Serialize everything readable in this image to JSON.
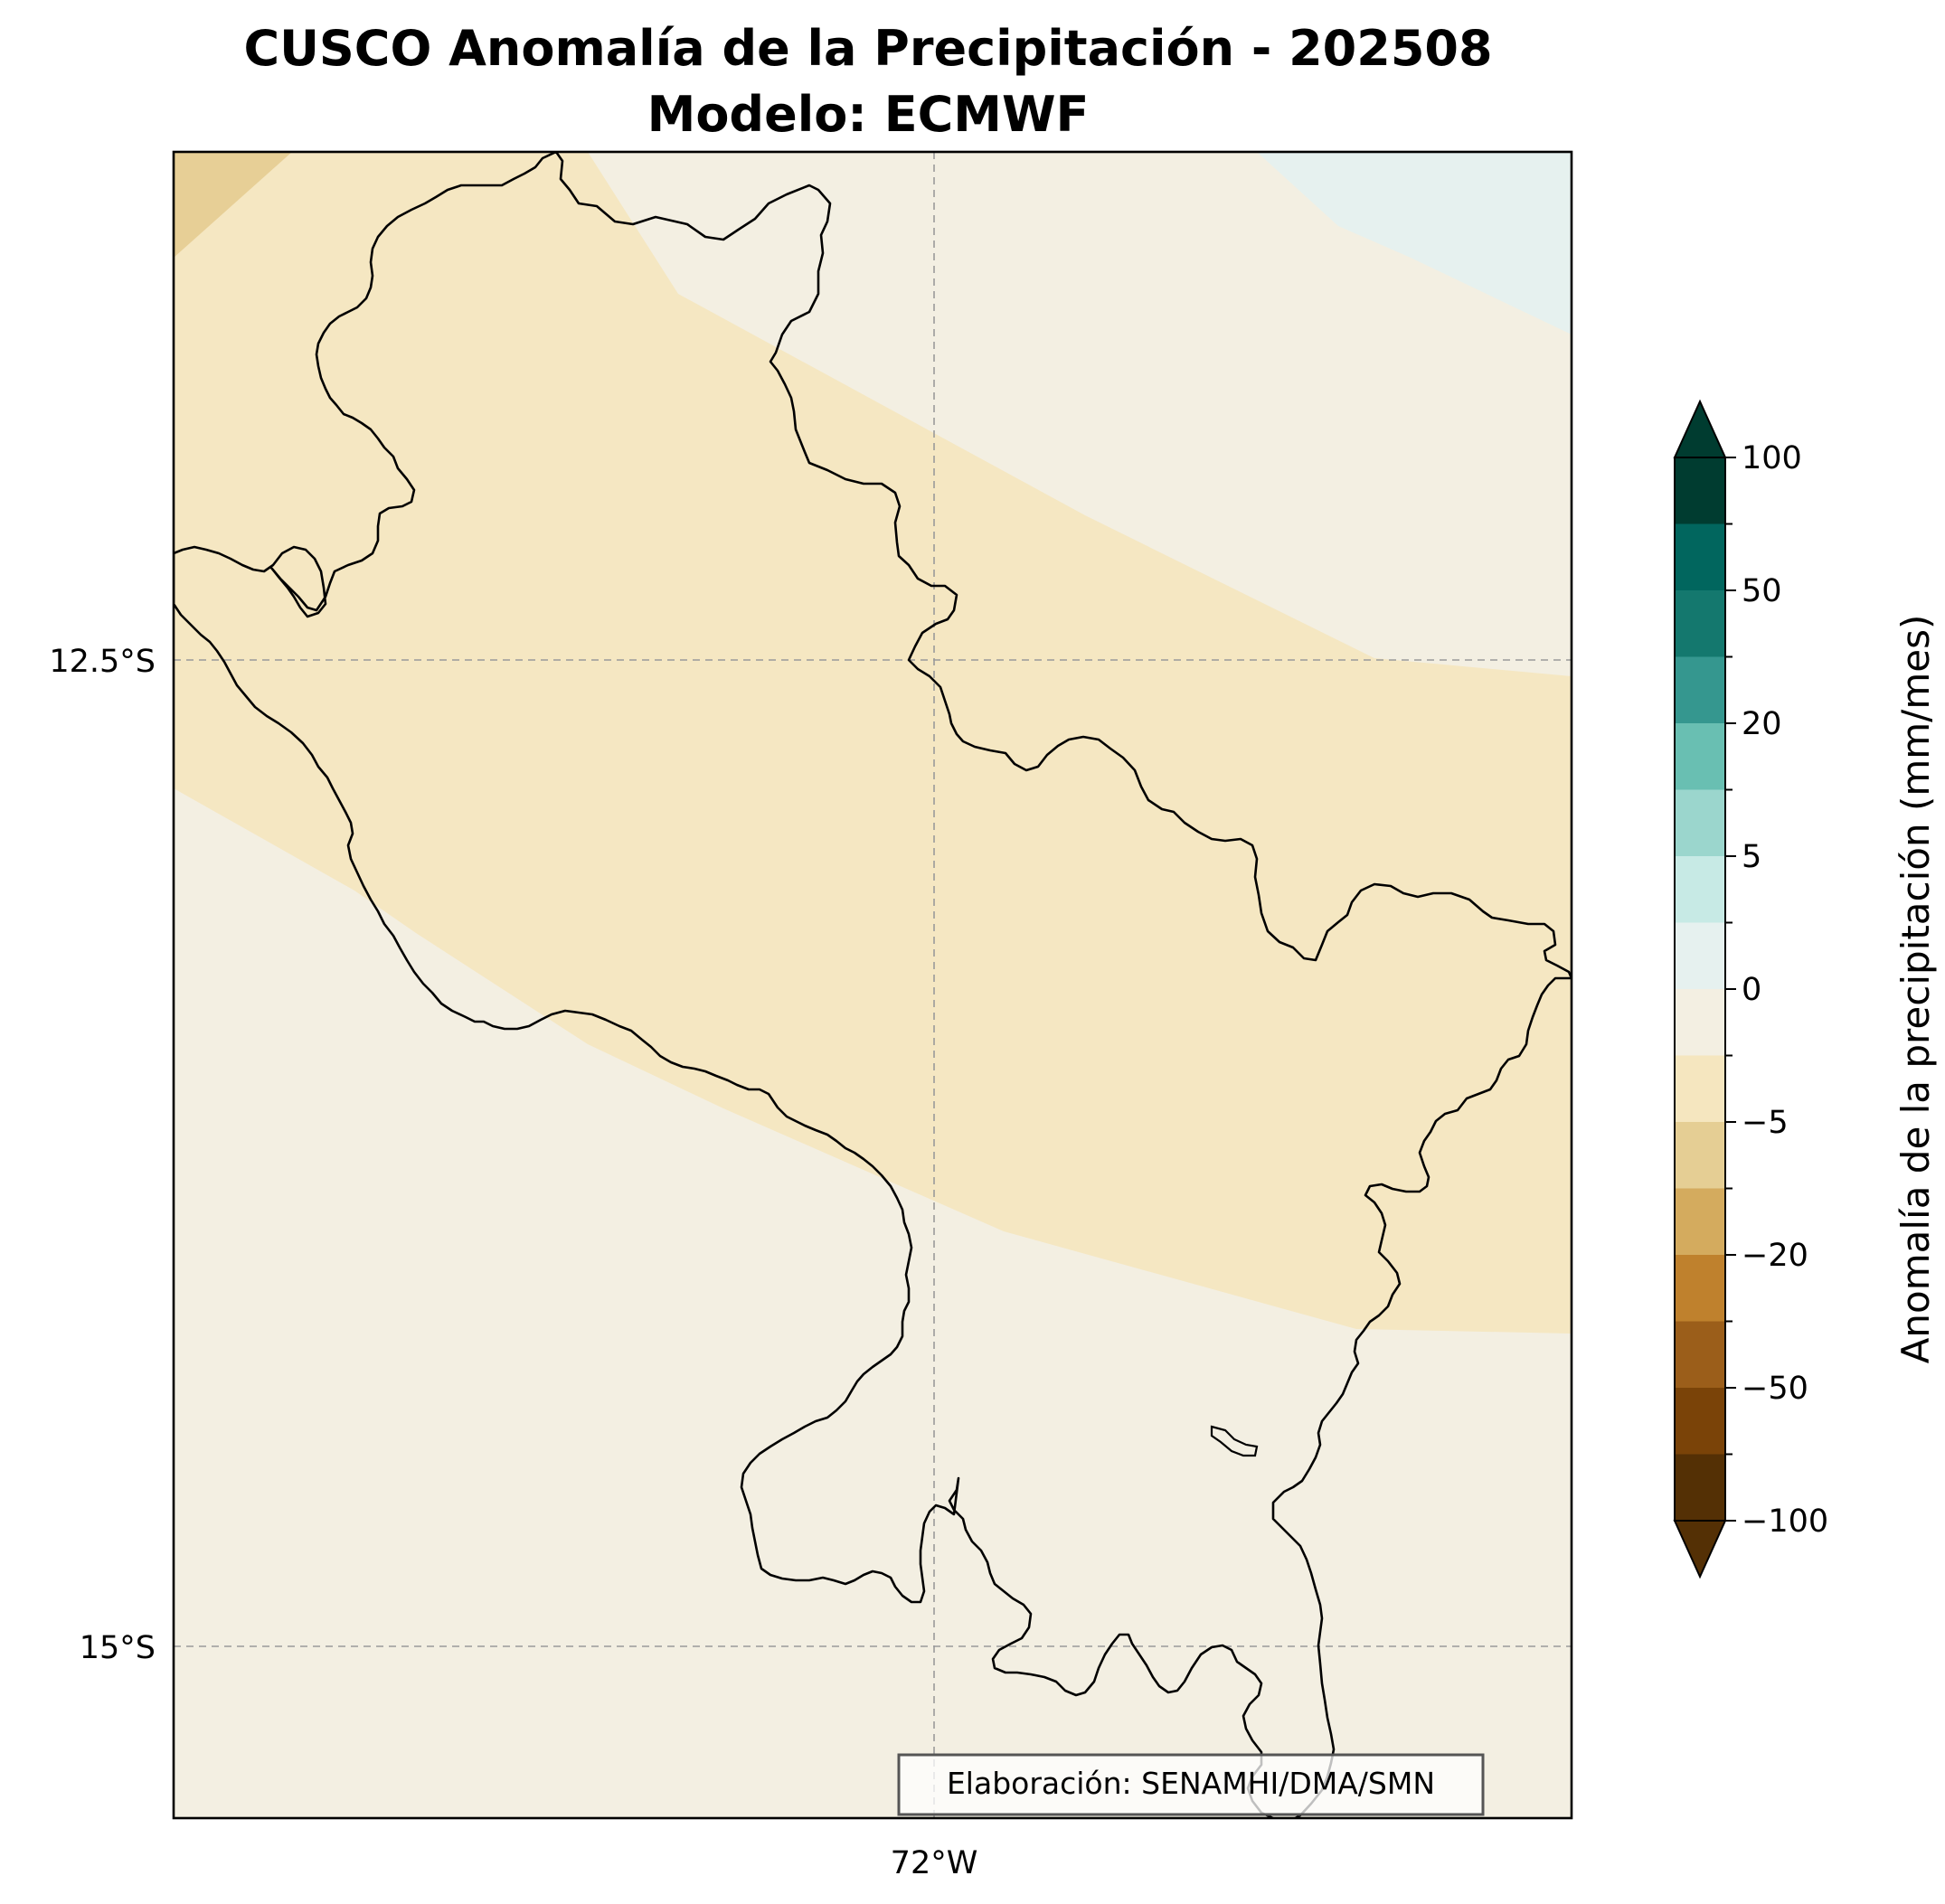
{
  "title": {
    "line1": "CUSCO Anomalía de la Precipitación - 202508",
    "line2": "Modelo: ECMWF"
  },
  "map": {
    "region": "CUSCO",
    "axes": {
      "lat_ticks": [
        "12.5°S",
        "15°S"
      ],
      "lon_ticks": [
        "72°W"
      ]
    },
    "credit": "Elaboración: SENAMHI/DMA/SMN"
  },
  "colorbar": {
    "label": "Anomalía de la precipitación (mm/mes)",
    "tick_labels": [
      "100",
      "50",
      "20",
      "5",
      "0",
      "−5",
      "−20",
      "−50",
      "−100"
    ],
    "bins_top_to_bottom": [
      "#003c30",
      "#01665e",
      "#14786e",
      "#35978f",
      "#69bfb2",
      "#9bd6cd",
      "#c7eae5",
      "#e6f1ef",
      "#f3efe2",
      "#f5e6bf",
      "#e5ce94",
      "#d4ab5e",
      "#bf812d",
      "#9b5e1a",
      "#7a4308",
      "#543005"
    ],
    "extend": "both"
  },
  "chart_data": {
    "type": "map-contour",
    "variable": "Anomalía de la precipitación",
    "units": "mm/mes",
    "period": "202508",
    "model": "ECMWF",
    "lat_ticks": [
      "12.5°S",
      "15°S"
    ],
    "lon_ticks": [
      "72°W"
    ],
    "colorbar_levels": [
      -100,
      -50,
      -20,
      -5,
      0,
      5,
      20,
      50,
      100
    ],
    "field_classes_visible": [
      "slightly_negative",
      "near_zero_negative",
      "near_zero_positive",
      "moderately_negative"
    ]
  }
}
